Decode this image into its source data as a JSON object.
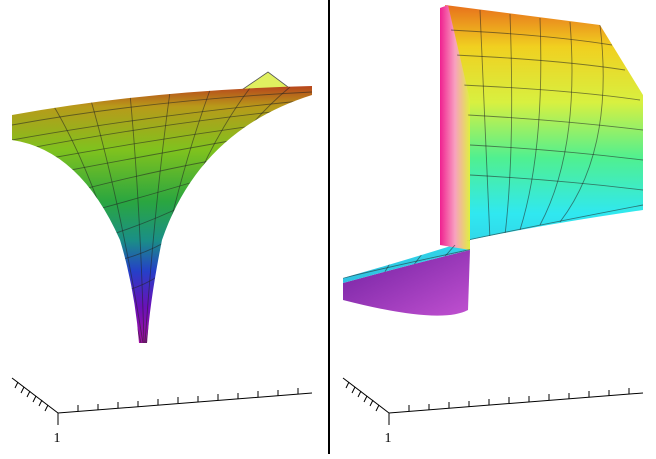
{
  "panels": [
    {
      "axis_label": "1"
    },
    {
      "axis_label": "1"
    }
  ]
}
